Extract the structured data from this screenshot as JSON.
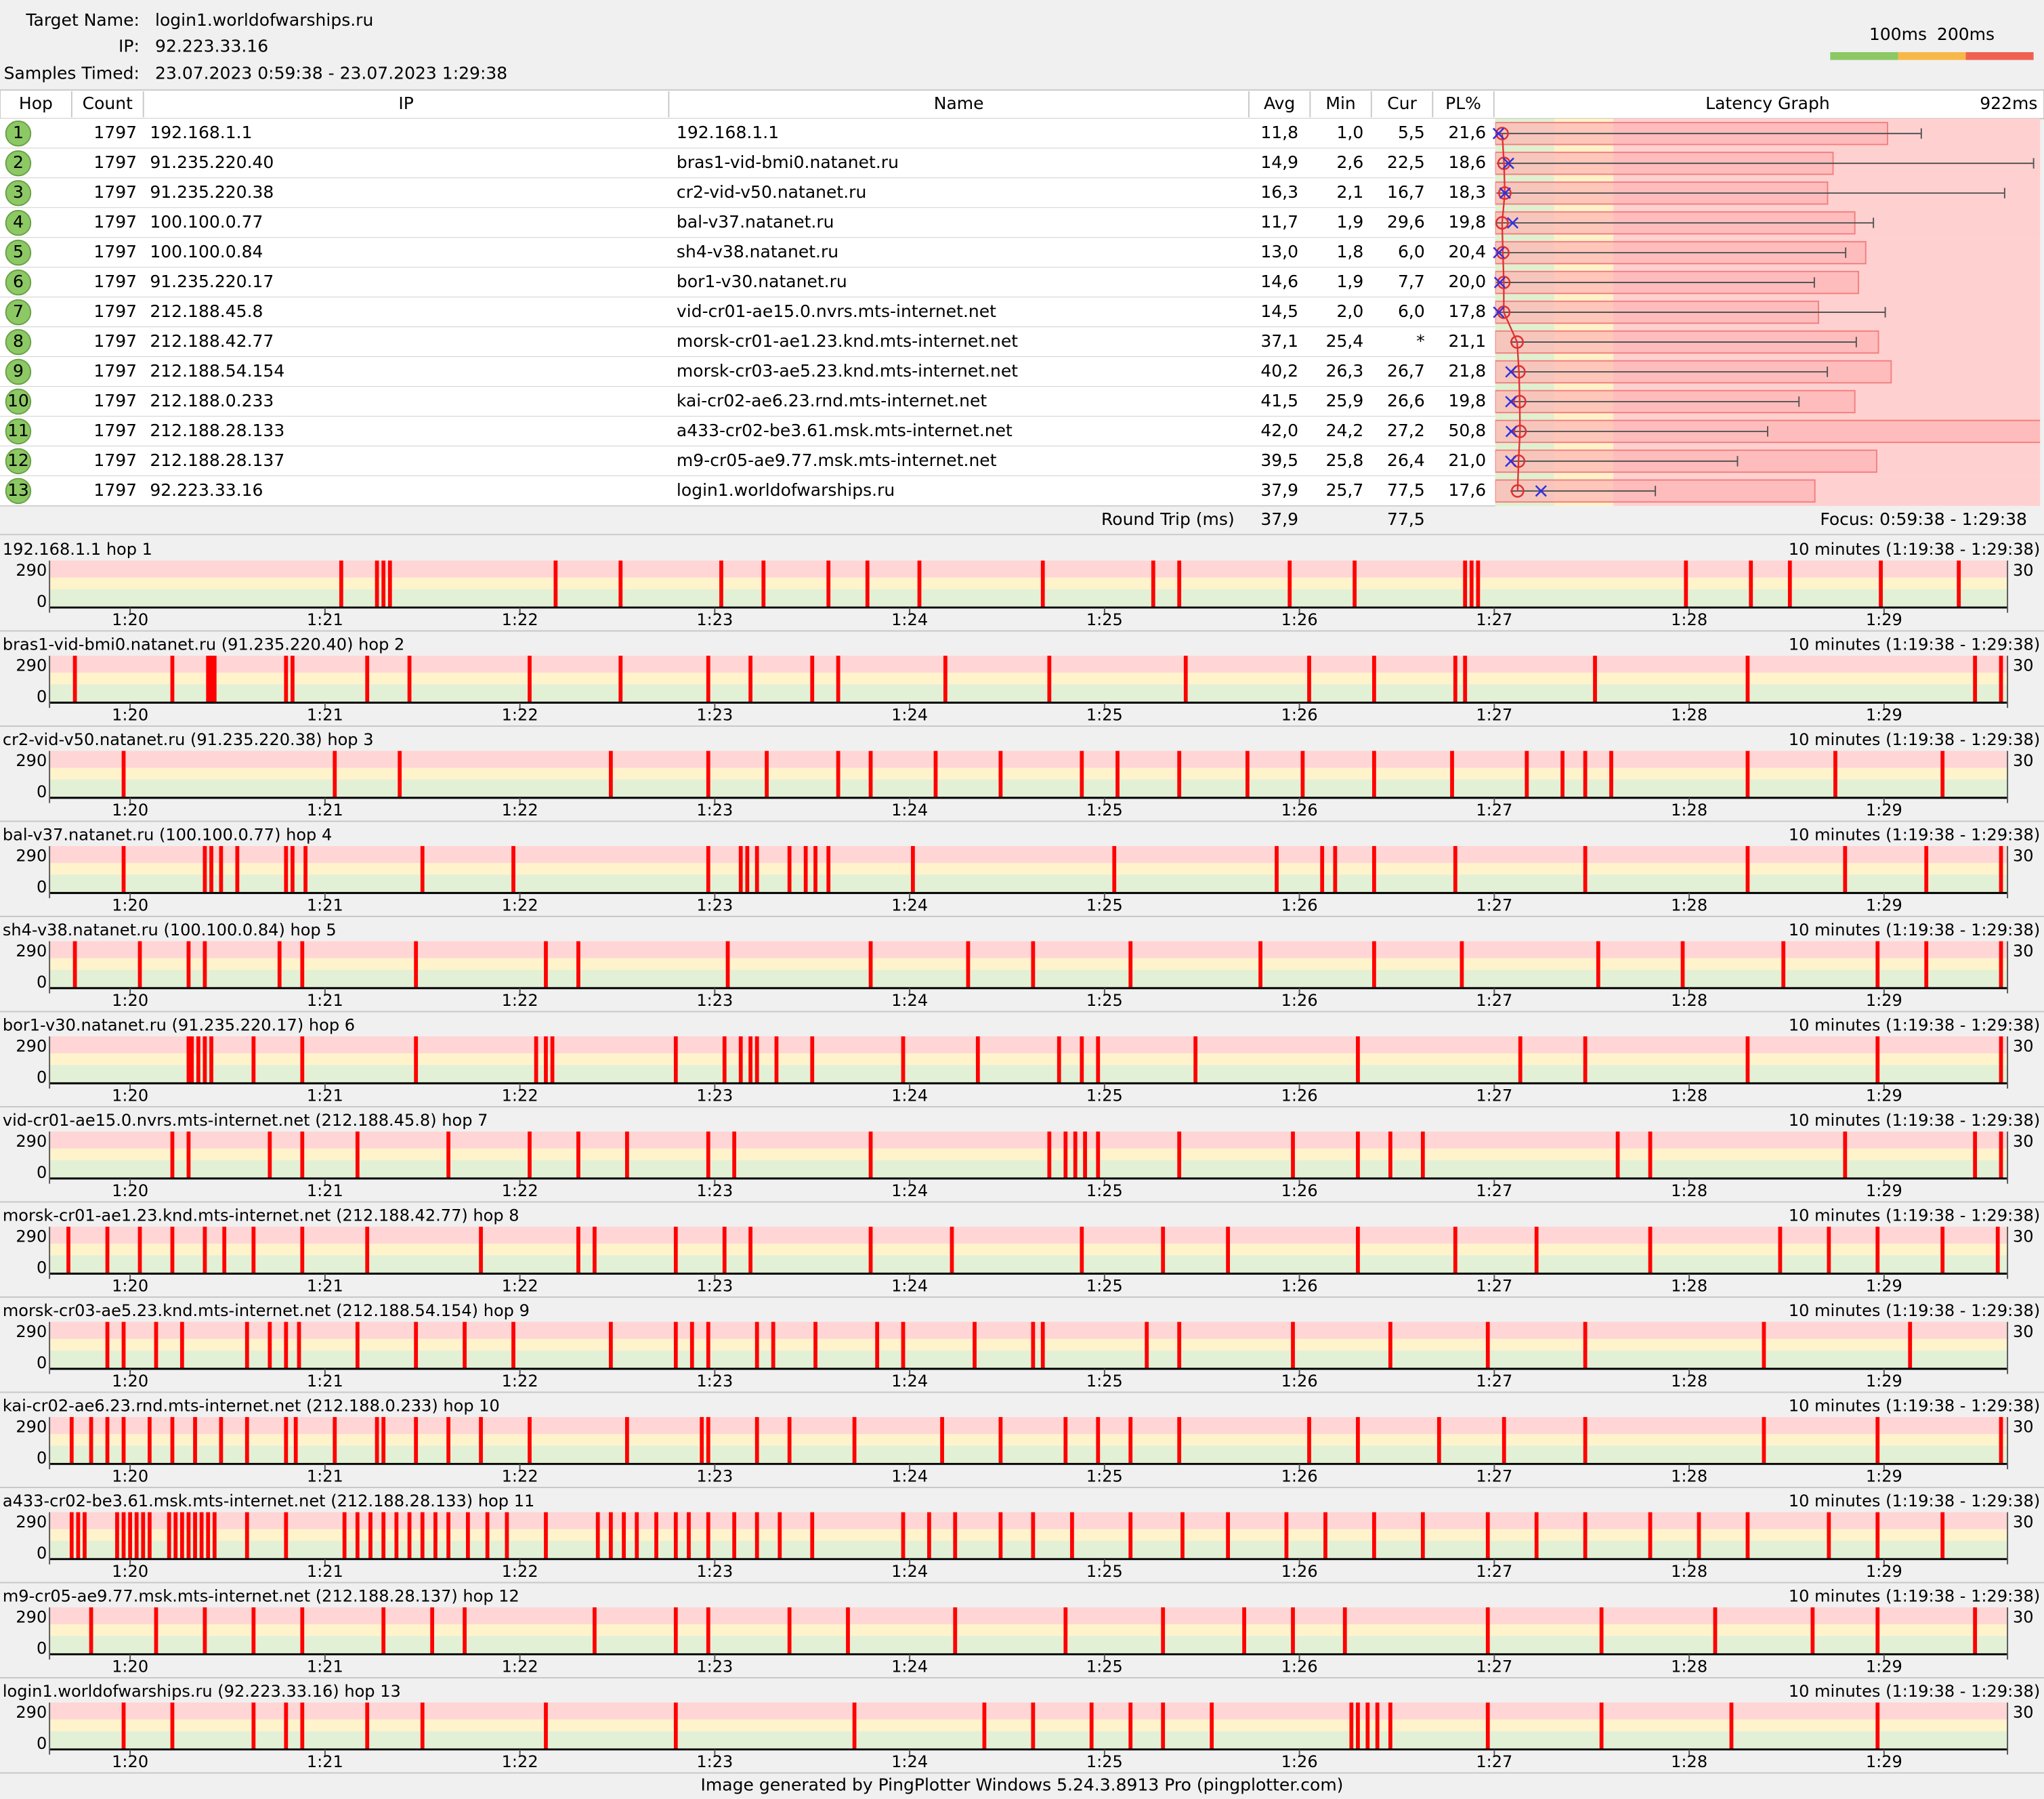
{
  "header": {
    "target_label": "Target Name:",
    "target": "login1.worldofwarships.ru",
    "ip_label": "IP:",
    "ip": "92.223.33.16",
    "samples_label": "Samples Timed:",
    "samples": "23.07.2023 0:59:38 - 23.07.2023 1:29:38"
  },
  "legend": {
    "thresholds": [
      {
        "value": 100,
        "label": "100ms"
      },
      {
        "value": 200,
        "label": "200ms"
      }
    ]
  },
  "table": {
    "columns": [
      "Hop",
      "Count",
      "IP",
      "Name",
      "Avg",
      "Min",
      "Cur",
      "PL%",
      "Latency Graph"
    ],
    "graph_max": {
      "value": 922,
      "label": "922ms"
    },
    "rows": [
      {
        "hop": 1,
        "count": 1797,
        "ip": "192.168.1.1",
        "name": "192.168.1.1",
        "avg": {
          "value": 11.8,
          "label": "11,8"
        },
        "min": {
          "value": 1.0,
          "label": "1,0"
        },
        "cur": {
          "value": 5.5,
          "label": "5,5"
        },
        "pl": {
          "value": 21.6,
          "label": "21,6"
        },
        "max": 721
      },
      {
        "hop": 2,
        "count": 1797,
        "ip": "91.235.220.40",
        "name": "bras1-vid-bmi0.natanet.ru",
        "avg": {
          "value": 14.9,
          "label": "14,9"
        },
        "min": {
          "value": 2.6,
          "label": "2,6"
        },
        "cur": {
          "value": 22.5,
          "label": "22,5"
        },
        "pl": {
          "value": 18.6,
          "label": "18,6"
        },
        "max": 911
      },
      {
        "hop": 3,
        "count": 1797,
        "ip": "91.235.220.38",
        "name": "cr2-vid-v50.natanet.ru",
        "avg": {
          "value": 16.3,
          "label": "16,3"
        },
        "min": {
          "value": 2.1,
          "label": "2,1"
        },
        "cur": {
          "value": 16.7,
          "label": "16,7"
        },
        "pl": {
          "value": 18.3,
          "label": "18,3"
        },
        "max": 862
      },
      {
        "hop": 4,
        "count": 1797,
        "ip": "100.100.0.77",
        "name": "bal-v37.natanet.ru",
        "avg": {
          "value": 11.7,
          "label": "11,7"
        },
        "min": {
          "value": 1.9,
          "label": "1,9"
        },
        "cur": {
          "value": 29.6,
          "label": "29,6"
        },
        "pl": {
          "value": 19.8,
          "label": "19,8"
        },
        "max": 640
      },
      {
        "hop": 5,
        "count": 1797,
        "ip": "100.100.0.84",
        "name": "sh4-v38.natanet.ru",
        "avg": {
          "value": 13.0,
          "label": "13,0"
        },
        "min": {
          "value": 1.8,
          "label": "1,8"
        },
        "cur": {
          "value": 6.0,
          "label": "6,0"
        },
        "pl": {
          "value": 20.4,
          "label": "20,4"
        },
        "max": 593
      },
      {
        "hop": 6,
        "count": 1797,
        "ip": "91.235.220.17",
        "name": "bor1-v30.natanet.ru",
        "avg": {
          "value": 14.6,
          "label": "14,6"
        },
        "min": {
          "value": 1.9,
          "label": "1,9"
        },
        "cur": {
          "value": 7.7,
          "label": "7,7"
        },
        "pl": {
          "value": 20.0,
          "label": "20,0"
        },
        "max": 540
      },
      {
        "hop": 7,
        "count": 1797,
        "ip": "212.188.45.8",
        "name": "vid-cr01-ae15.0.nvrs.mts-internet.net",
        "avg": {
          "value": 14.5,
          "label": "14,5"
        },
        "min": {
          "value": 2.0,
          "label": "2,0"
        },
        "cur": {
          "value": 6.0,
          "label": "6,0"
        },
        "pl": {
          "value": 17.8,
          "label": "17,8"
        },
        "max": 660
      },
      {
        "hop": 8,
        "count": 1797,
        "ip": "212.188.42.77",
        "name": "morsk-cr01-ae1.23.knd.mts-internet.net",
        "avg": {
          "value": 37.1,
          "label": "37,1"
        },
        "min": {
          "value": 25.4,
          "label": "25,4"
        },
        "cur": {
          "value": null,
          "label": "*"
        },
        "pl": {
          "value": 21.1,
          "label": "21,1"
        },
        "max": 611
      },
      {
        "hop": 9,
        "count": 1797,
        "ip": "212.188.54.154",
        "name": "morsk-cr03-ae5.23.knd.mts-internet.net",
        "avg": {
          "value": 40.2,
          "label": "40,2"
        },
        "min": {
          "value": 26.3,
          "label": "26,3"
        },
        "cur": {
          "value": 26.7,
          "label": "26,7"
        },
        "pl": {
          "value": 21.8,
          "label": "21,8"
        },
        "max": 562
      },
      {
        "hop": 10,
        "count": 1797,
        "ip": "212.188.0.233",
        "name": "kai-cr02-ae6.23.rnd.mts-internet.net",
        "avg": {
          "value": 41.5,
          "label": "41,5"
        },
        "min": {
          "value": 25.9,
          "label": "25,9"
        },
        "cur": {
          "value": 26.6,
          "label": "26,6"
        },
        "pl": {
          "value": 19.8,
          "label": "19,8"
        },
        "max": 514
      },
      {
        "hop": 11,
        "count": 1797,
        "ip": "212.188.28.133",
        "name": "a433-cr02-be3.61.msk.mts-internet.net",
        "avg": {
          "value": 42.0,
          "label": "42,0"
        },
        "min": {
          "value": 24.2,
          "label": "24,2"
        },
        "cur": {
          "value": 27.2,
          "label": "27,2"
        },
        "pl": {
          "value": 50.8,
          "label": "50,8"
        },
        "max": 461
      },
      {
        "hop": 12,
        "count": 1797,
        "ip": "212.188.28.137",
        "name": "m9-cr05-ae9.77.msk.mts-internet.net",
        "avg": {
          "value": 39.5,
          "label": "39,5"
        },
        "min": {
          "value": 25.8,
          "label": "25,8"
        },
        "cur": {
          "value": 26.4,
          "label": "26,4"
        },
        "pl": {
          "value": 21.0,
          "label": "21,0"
        },
        "max": 410
      },
      {
        "hop": 13,
        "count": 1797,
        "ip": "92.223.33.16",
        "name": "login1.worldofwarships.ru",
        "avg": {
          "value": 37.9,
          "label": "37,9"
        },
        "min": {
          "value": 25.7,
          "label": "25,7"
        },
        "cur": {
          "value": 77.5,
          "label": "77,5"
        },
        "pl": {
          "value": 17.6,
          "label": "17,6"
        },
        "max": 271
      }
    ],
    "round_trip": {
      "label": "Round Trip (ms)",
      "avg": "37,9",
      "cur": "77,5"
    },
    "focus": "Focus: 0:59:38 - 1:29:38"
  },
  "timeline": {
    "range": "10 minutes (1:19:38 - 1:29:38)",
    "xlim": [
      0,
      600
    ],
    "xticks": [
      {
        "value": 22,
        "label": "1:20"
      },
      {
        "value": 82,
        "label": "1:21"
      },
      {
        "value": 142,
        "label": "1:22"
      },
      {
        "value": 202,
        "label": "1:23"
      },
      {
        "value": 262,
        "label": "1:24"
      },
      {
        "value": 322,
        "label": "1:25"
      },
      {
        "value": 382,
        "label": "1:26"
      },
      {
        "value": 442,
        "label": "1:27"
      },
      {
        "value": 502,
        "label": "1:28"
      },
      {
        "value": 562,
        "label": "1:29"
      }
    ],
    "ylim": [
      0,
      290
    ],
    "yticks": [
      0,
      290
    ],
    "loss_max": 30
  },
  "graphs": [
    {
      "title": "192.168.1.1 hop 1",
      "loss": [
        87,
        98,
        100,
        102,
        153,
        173,
        204,
        217,
        237,
        249,
        265,
        303,
        337,
        345,
        379,
        399,
        433,
        435,
        437,
        501,
        521,
        533,
        561,
        585
      ]
    },
    {
      "title": "bras1-vid-bmi0.natanet.ru (91.235.220.40) hop 2",
      "loss": [
        5,
        35,
        46,
        47,
        48,
        70,
        72,
        95,
        108,
        145,
        173,
        200,
        213,
        232,
        240,
        273,
        305,
        347,
        385,
        405,
        430,
        433,
        473,
        520,
        590,
        598
      ]
    },
    {
      "title": "cr2-vid-v50.natanet.ru (91.235.220.38) hop 3",
      "loss": [
        20,
        85,
        105,
        170,
        200,
        218,
        240,
        250,
        270,
        290,
        315,
        326,
        345,
        366,
        383,
        405,
        429,
        452,
        463,
        470,
        478,
        520,
        547,
        580
      ]
    },
    {
      "title": "bal-v37.natanet.ru (100.100.0.77) hop 4",
      "loss": [
        20,
        45,
        47,
        50,
        55,
        70,
        72,
        76,
        112,
        140,
        200,
        210,
        212,
        215,
        225,
        230,
        233,
        237,
        263,
        325,
        375,
        389,
        393,
        405,
        430,
        470,
        520,
        550,
        575,
        598
      ]
    },
    {
      "title": "sh4-v38.natanet.ru (100.100.0.84) hop 5",
      "loss": [
        5,
        25,
        40,
        45,
        68,
        75,
        110,
        150,
        160,
        206,
        250,
        280,
        300,
        330,
        370,
        405,
        432,
        474,
        500,
        531,
        560,
        575,
        598
      ]
    },
    {
      "title": "bor1-v30.natanet.ru (91.235.220.17) hop 6",
      "loss": [
        40,
        41,
        43,
        45,
        47,
        60,
        75,
        110,
        147,
        150,
        152,
        190,
        205,
        210,
        213,
        215,
        221,
        232,
        260,
        283,
        308,
        315,
        320,
        350,
        400,
        450,
        470,
        520,
        560,
        598
      ]
    },
    {
      "title": "vid-cr01-ae15.0.nvrs.mts-internet.net (212.188.45.8) hop 7",
      "loss": [
        35,
        40,
        65,
        75,
        92,
        120,
        145,
        160,
        175,
        200,
        208,
        250,
        305,
        310,
        313,
        316,
        320,
        345,
        380,
        400,
        410,
        420,
        480,
        490,
        550,
        590,
        598
      ]
    },
    {
      "title": "morsk-cr01-ae1.23.knd.mts-internet.net (212.188.42.77) hop 8",
      "loss": [
        3,
        15,
        25,
        35,
        45,
        51,
        60,
        75,
        95,
        130,
        160,
        165,
        190,
        205,
        213,
        250,
        275,
        315,
        340,
        360,
        400,
        430,
        455,
        490,
        530,
        545,
        560,
        580,
        597
      ]
    },
    {
      "title": "morsk-cr03-ae5.23.knd.mts-internet.net (212.188.54.154) hop 9",
      "loss": [
        15,
        20,
        30,
        38,
        58,
        65,
        70,
        74,
        92,
        110,
        125,
        140,
        170,
        190,
        195,
        200,
        215,
        220,
        233,
        252,
        260,
        282,
        300,
        303,
        335,
        345,
        380,
        410,
        440,
        470,
        525,
        570
      ]
    },
    {
      "title": "kai-cr02-ae6.23.rnd.mts-internet.net (212.188.0.233) hop 10",
      "loss": [
        4,
        10,
        15,
        20,
        28,
        35,
        42,
        50,
        58,
        70,
        73,
        85,
        98,
        100,
        110,
        120,
        130,
        145,
        175,
        198,
        200,
        215,
        225,
        245,
        272,
        290,
        310,
        320,
        330,
        345,
        385,
        400,
        425,
        445,
        470,
        525,
        560,
        598
      ]
    },
    {
      "title": "a433-cr02-be3.61.msk.mts-internet.net (212.188.28.133) hop 11",
      "loss": [
        4,
        6,
        8,
        18,
        20,
        22,
        24,
        26,
        28,
        34,
        36,
        38,
        40,
        42,
        44,
        46,
        48,
        58,
        70,
        88,
        92,
        96,
        100,
        104,
        108,
        112,
        116,
        120,
        126,
        132,
        138,
        150,
        166,
        170,
        174,
        178,
        184,
        190,
        194,
        200,
        208,
        215,
        222,
        232,
        260,
        268,
        276,
        290,
        300,
        312,
        330,
        346,
        360,
        378,
        390,
        405,
        420,
        440,
        455,
        470,
        490,
        505,
        520,
        545,
        560,
        580
      ]
    },
    {
      "title": "m9-cr05-ae9.77.msk.mts-internet.net (212.188.28.137) hop 12",
      "loss": [
        10,
        30,
        45,
        60,
        75,
        100,
        115,
        125,
        165,
        190,
        200,
        225,
        243,
        276,
        310,
        340,
        365,
        380,
        396,
        440,
        475,
        510,
        540,
        560,
        590
      ]
    },
    {
      "title": "login1.worldofwarships.ru (92.223.33.16) hop 13",
      "loss": [
        20,
        35,
        60,
        70,
        75,
        95,
        112,
        150,
        190,
        245,
        285,
        300,
        318,
        330,
        340,
        355,
        398,
        400,
        403,
        406,
        410,
        440,
        475,
        515,
        560
      ]
    }
  ],
  "footer": "Image generated by PingPlotter Windows 5.24.3.8913 Pro (pingplotter.com)"
}
